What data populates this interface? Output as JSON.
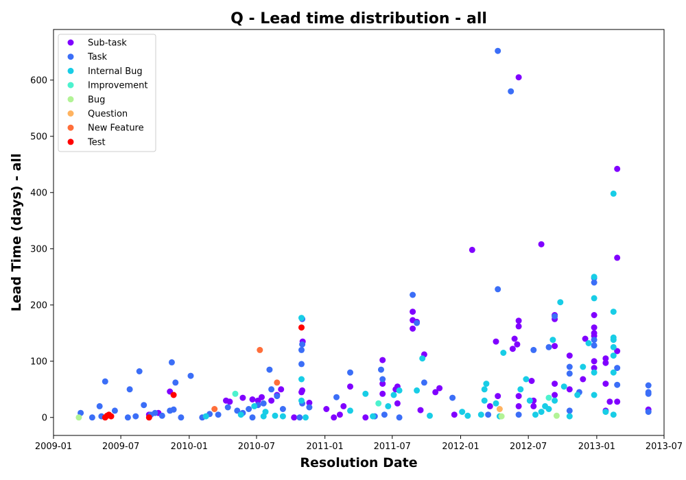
{
  "chart_data": {
    "type": "scatter",
    "title": "Q - Lead time distribution - all",
    "xlabel": "Resolution Date",
    "ylabel": "Lead Time (days) - all",
    "xlim": [
      "2009-01-01",
      "2013-07-01"
    ],
    "ylim": [
      -32,
      690
    ],
    "x_ticks": [
      "2009-01",
      "2009-07",
      "2010-01",
      "2010-07",
      "2011-01",
      "2011-07",
      "2012-01",
      "2012-07",
      "2013-01",
      "2013-07"
    ],
    "y_ticks": [
      0,
      100,
      200,
      300,
      400,
      500,
      600
    ],
    "grid": false,
    "legend_position": "top-left",
    "series": [
      {
        "name": "Sub-task",
        "color": "#8000ff",
        "points": [
          [
            "2009-09-15",
            5
          ],
          [
            "2009-10-10",
            8
          ],
          [
            "2009-11-10",
            46
          ],
          [
            "2010-04-10",
            30
          ],
          [
            "2010-04-20",
            28
          ],
          [
            "2010-05-25",
            35
          ],
          [
            "2010-06-20",
            32
          ],
          [
            "2010-07-05",
            30
          ],
          [
            "2010-07-15",
            36
          ],
          [
            "2010-08-10",
            30
          ],
          [
            "2010-08-25",
            40
          ],
          [
            "2010-09-05",
            50
          ],
          [
            "2010-10-10",
            0
          ],
          [
            "2010-10-30",
            45
          ],
          [
            "2010-11-01",
            48
          ],
          [
            "2010-11-02",
            135
          ],
          [
            "2010-11-20",
            26
          ],
          [
            "2011-01-05",
            15
          ],
          [
            "2011-01-25",
            0
          ],
          [
            "2011-02-10",
            5
          ],
          [
            "2011-02-20",
            20
          ],
          [
            "2011-03-10",
            55
          ],
          [
            "2011-04-20",
            0
          ],
          [
            "2011-06-05",
            102
          ],
          [
            "2011-06-05",
            60
          ],
          [
            "2011-06-05",
            42
          ],
          [
            "2011-07-10",
            50
          ],
          [
            "2011-07-15",
            55
          ],
          [
            "2011-07-15",
            25
          ],
          [
            "2011-08-25",
            188
          ],
          [
            "2011-08-25",
            173
          ],
          [
            "2011-08-25",
            158
          ],
          [
            "2011-09-05",
            170
          ],
          [
            "2011-09-15",
            13
          ],
          [
            "2011-09-25",
            112
          ],
          [
            "2011-10-25",
            45
          ],
          [
            "2011-11-05",
            52
          ],
          [
            "2011-12-15",
            5
          ],
          [
            "2012-02-01",
            298
          ],
          [
            "2012-03-20",
            20
          ],
          [
            "2012-04-05",
            135
          ],
          [
            "2012-04-10",
            38
          ],
          [
            "2012-05-20",
            122
          ],
          [
            "2012-05-25",
            140
          ],
          [
            "2012-06-01",
            130
          ],
          [
            "2012-06-05",
            172
          ],
          [
            "2012-06-05",
            162
          ],
          [
            "2012-06-05",
            38
          ],
          [
            "2012-06-05",
            20
          ],
          [
            "2012-06-05",
            605
          ],
          [
            "2012-07-10",
            65
          ],
          [
            "2012-07-15",
            20
          ],
          [
            "2012-07-15",
            30
          ],
          [
            "2012-08-05",
            308
          ],
          [
            "2012-09-10",
            182
          ],
          [
            "2012-09-10",
            175
          ],
          [
            "2012-09-10",
            127
          ],
          [
            "2012-09-10",
            60
          ],
          [
            "2012-09-10",
            40
          ],
          [
            "2012-10-20",
            110
          ],
          [
            "2012-10-20",
            50
          ],
          [
            "2012-11-25",
            68
          ],
          [
            "2012-12-01",
            140
          ],
          [
            "2012-12-25",
            160
          ],
          [
            "2012-12-25",
            150
          ],
          [
            "2012-12-25",
            145
          ],
          [
            "2012-12-25",
            100
          ],
          [
            "2012-12-25",
            88
          ],
          [
            "2012-12-25",
            182
          ],
          [
            "2013-01-25",
            105
          ],
          [
            "2013-01-25",
            97
          ],
          [
            "2013-01-25",
            60
          ],
          [
            "2013-01-25",
            12
          ],
          [
            "2013-02-05",
            28
          ],
          [
            "2013-02-25",
            442
          ],
          [
            "2013-02-25",
            284
          ],
          [
            "2013-02-25",
            118
          ],
          [
            "2013-02-25",
            28
          ],
          [
            "2013-05-20",
            14
          ]
        ]
      },
      {
        "name": "Task",
        "color": "#3b6ef7",
        "points": [
          [
            "2009-03-15",
            8
          ],
          [
            "2009-04-15",
            0
          ],
          [
            "2009-05-05",
            20
          ],
          [
            "2009-05-10",
            2
          ],
          [
            "2009-05-20",
            64
          ],
          [
            "2009-06-15",
            12
          ],
          [
            "2009-07-20",
            0
          ],
          [
            "2009-07-25",
            50
          ],
          [
            "2009-08-10",
            2
          ],
          [
            "2009-08-20",
            82
          ],
          [
            "2009-09-01",
            22
          ],
          [
            "2009-09-20",
            5
          ],
          [
            "2009-10-01",
            8
          ],
          [
            "2009-10-20",
            3
          ],
          [
            "2009-11-10",
            12
          ],
          [
            "2009-11-15",
            98
          ],
          [
            "2009-11-20",
            14
          ],
          [
            "2009-11-25",
            62
          ],
          [
            "2009-12-10",
            0
          ],
          [
            "2010-01-05",
            74
          ],
          [
            "2010-02-05",
            0
          ],
          [
            "2010-02-25",
            6
          ],
          [
            "2010-03-20",
            5
          ],
          [
            "2010-04-15",
            18
          ],
          [
            "2010-05-10",
            12
          ],
          [
            "2010-05-25",
            8
          ],
          [
            "2010-06-10",
            15
          ],
          [
            "2010-06-20",
            0
          ],
          [
            "2010-07-05",
            22
          ],
          [
            "2010-07-20",
            25
          ],
          [
            "2010-08-05",
            85
          ],
          [
            "2010-08-10",
            50
          ],
          [
            "2010-08-25",
            38
          ],
          [
            "2010-09-10",
            15
          ],
          [
            "2010-10-25",
            0
          ],
          [
            "2010-10-30",
            95
          ],
          [
            "2010-10-30",
            120
          ],
          [
            "2010-11-01",
            130
          ],
          [
            "2010-11-01",
            175
          ],
          [
            "2010-11-01",
            25
          ],
          [
            "2010-11-20",
            18
          ],
          [
            "2011-02-01",
            36
          ],
          [
            "2011-03-10",
            80
          ],
          [
            "2011-05-15",
            2
          ],
          [
            "2011-06-01",
            85
          ],
          [
            "2011-06-05",
            68
          ],
          [
            "2011-06-10",
            5
          ],
          [
            "2011-07-20",
            0
          ],
          [
            "2011-08-25",
            218
          ],
          [
            "2011-09-05",
            168
          ],
          [
            "2011-09-25",
            62
          ],
          [
            "2011-12-10",
            35
          ],
          [
            "2012-03-15",
            5
          ],
          [
            "2012-04-10",
            652
          ],
          [
            "2012-04-10",
            228
          ],
          [
            "2012-05-15",
            580
          ],
          [
            "2012-06-05",
            5
          ],
          [
            "2012-07-15",
            120
          ],
          [
            "2012-08-25",
            125
          ],
          [
            "2012-09-10",
            180
          ],
          [
            "2012-10-20",
            90
          ],
          [
            "2012-10-20",
            78
          ],
          [
            "2012-10-20",
            12
          ],
          [
            "2012-11-15",
            45
          ],
          [
            "2012-12-25",
            240
          ],
          [
            "2012-12-25",
            248
          ],
          [
            "2012-12-25",
            128
          ],
          [
            "2012-12-25",
            138
          ],
          [
            "2013-02-25",
            88
          ],
          [
            "2013-02-25",
            58
          ],
          [
            "2013-05-20",
            57
          ],
          [
            "2013-05-20",
            45
          ],
          [
            "2013-05-20",
            42
          ],
          [
            "2013-05-20",
            10
          ]
        ]
      },
      {
        "name": "Internal Bug",
        "color": "#18cde6",
        "points": [
          [
            "2010-02-15",
            2
          ],
          [
            "2010-05-20",
            5
          ],
          [
            "2010-06-25",
            20
          ],
          [
            "2010-07-20",
            2
          ],
          [
            "2010-07-25",
            10
          ],
          [
            "2010-08-20",
            3
          ],
          [
            "2010-09-10",
            2
          ],
          [
            "2010-10-30",
            177
          ],
          [
            "2010-10-30",
            68
          ],
          [
            "2010-10-30",
            30
          ],
          [
            "2010-11-10",
            0
          ],
          [
            "2011-03-10",
            12
          ],
          [
            "2011-04-20",
            42
          ],
          [
            "2011-05-10",
            2
          ],
          [
            "2011-06-20",
            20
          ],
          [
            "2011-07-05",
            40
          ],
          [
            "2011-07-20",
            48
          ],
          [
            "2011-09-05",
            48
          ],
          [
            "2011-09-20",
            105
          ],
          [
            "2011-10-10",
            3
          ],
          [
            "2012-01-05",
            10
          ],
          [
            "2012-01-20",
            3
          ],
          [
            "2012-02-25",
            5
          ],
          [
            "2012-03-05",
            30
          ],
          [
            "2012-03-05",
            50
          ],
          [
            "2012-03-10",
            60
          ],
          [
            "2012-04-05",
            25
          ],
          [
            "2012-04-15",
            2
          ],
          [
            "2012-04-25",
            115
          ],
          [
            "2012-06-10",
            50
          ],
          [
            "2012-06-25",
            68
          ],
          [
            "2012-07-05",
            30
          ],
          [
            "2012-07-20",
            5
          ],
          [
            "2012-08-05",
            10
          ],
          [
            "2012-08-15",
            20
          ],
          [
            "2012-08-25",
            15
          ],
          [
            "2012-09-05",
            138
          ],
          [
            "2012-09-10",
            30
          ],
          [
            "2012-09-25",
            205
          ],
          [
            "2012-10-05",
            55
          ],
          [
            "2012-10-20",
            2
          ],
          [
            "2012-11-10",
            40
          ],
          [
            "2012-11-25",
            90
          ],
          [
            "2012-12-10",
            132
          ],
          [
            "2012-12-25",
            250
          ],
          [
            "2012-12-25",
            212
          ],
          [
            "2012-12-25",
            80
          ],
          [
            "2012-12-25",
            40
          ],
          [
            "2013-01-25",
            10
          ],
          [
            "2013-02-15",
            398
          ],
          [
            "2013-02-15",
            188
          ],
          [
            "2013-02-15",
            142
          ],
          [
            "2013-02-15",
            138
          ],
          [
            "2013-02-15",
            125
          ],
          [
            "2013-02-15",
            110
          ],
          [
            "2013-02-15",
            80
          ],
          [
            "2013-02-15",
            5
          ]
        ]
      },
      {
        "name": "Improvement",
        "color": "#4cf2ce",
        "points": [
          [
            "2010-05-05",
            42
          ],
          [
            "2011-05-25",
            25
          ],
          [
            "2012-08-25",
            35
          ]
        ]
      },
      {
        "name": "Bug",
        "color": "#b2f396",
        "points": [
          [
            "2009-03-10",
            0
          ],
          [
            "2012-04-20",
            2
          ],
          [
            "2012-09-15",
            3
          ]
        ]
      },
      {
        "name": "Question",
        "color": "#ffb360",
        "points": [
          [
            "2012-04-15",
            15
          ]
        ]
      },
      {
        "name": "New Feature",
        "color": "#ff6e3a",
        "points": [
          [
            "2010-03-10",
            15
          ],
          [
            "2010-07-10",
            120
          ],
          [
            "2010-08-25",
            62
          ]
        ]
      },
      {
        "name": "Test",
        "color": "#ff0000",
        "points": [
          [
            "2009-05-20",
            0
          ],
          [
            "2009-05-25",
            3
          ],
          [
            "2009-05-30",
            5
          ],
          [
            "2009-06-05",
            2
          ],
          [
            "2009-09-15",
            0
          ],
          [
            "2009-11-20",
            40
          ],
          [
            "2010-10-30",
            160
          ]
        ]
      }
    ]
  }
}
